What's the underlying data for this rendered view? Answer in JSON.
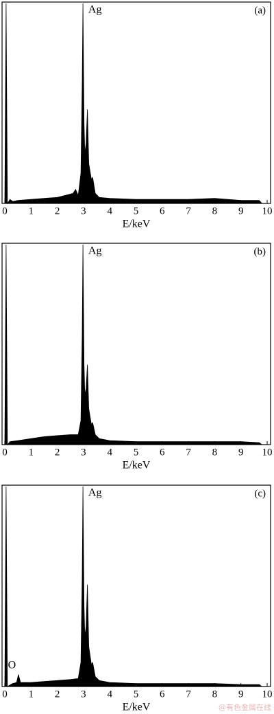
{
  "chart_data": [
    {
      "type": "area",
      "panel_label": "(a)",
      "annotations": [
        {
          "text": "Ag",
          "x": 3.0
        }
      ],
      "xlabel": "E/keV",
      "color": "#000000",
      "xlim": [
        0,
        10
      ],
      "ylim": [
        0,
        100
      ],
      "xticks": [
        0,
        1,
        2,
        3,
        4,
        5,
        6,
        7,
        8,
        9,
        10
      ],
      "x": [
        0,
        0.05,
        0.1,
        0.2,
        0.3,
        0.5,
        1,
        1.5,
        2,
        2.3,
        2.6,
        2.7,
        2.8,
        2.9,
        2.95,
        2.98,
        3.02,
        3.05,
        3.1,
        3.15,
        3.2,
        3.3,
        3.35,
        3.45,
        3.6,
        4,
        5,
        6,
        7,
        8,
        9,
        9.7,
        9.8
      ],
      "values": [
        0,
        100,
        0,
        2,
        1,
        1.5,
        2,
        2.5,
        3,
        4,
        5,
        7,
        4,
        15,
        60,
        100,
        40,
        25,
        30,
        47,
        20,
        12,
        13,
        5,
        3,
        2.5,
        2,
        2,
        2,
        2.5,
        1.5,
        1.5,
        0
      ]
    },
    {
      "type": "area",
      "panel_label": "(b)",
      "annotations": [
        {
          "text": "Ag",
          "x": 3.0
        }
      ],
      "xlabel": "E/keV",
      "color": "#000000",
      "xlim": [
        0,
        10
      ],
      "ylim": [
        0,
        100
      ],
      "xticks": [
        0,
        1,
        2,
        3,
        4,
        5,
        6,
        7,
        8,
        9,
        10
      ],
      "x": [
        0,
        0.05,
        0.1,
        0.2,
        0.5,
        1,
        1.5,
        2,
        2.5,
        2.8,
        2.9,
        2.95,
        2.98,
        3.02,
        3.05,
        3.1,
        3.15,
        3.2,
        3.3,
        3.35,
        3.45,
        3.6,
        4,
        5,
        6,
        7,
        8,
        9,
        9.7,
        9.8
      ],
      "values": [
        0,
        100,
        0,
        1.5,
        2,
        3,
        4,
        4.5,
        5,
        5,
        12,
        55,
        100,
        40,
        25,
        28,
        40,
        18,
        10,
        11,
        5,
        3,
        2,
        1.5,
        1.5,
        1.5,
        1.5,
        1.5,
        1,
        0
      ]
    },
    {
      "type": "area",
      "panel_label": "(c)",
      "annotations": [
        {
          "text": "Ag",
          "x": 3.0
        },
        {
          "text": "O",
          "x": 0.5
        }
      ],
      "xlabel": "E/keV",
      "color": "#000000",
      "xlim": [
        0,
        10
      ],
      "ylim": [
        0,
        100
      ],
      "xticks": [
        0,
        1,
        2,
        3,
        4,
        5,
        6,
        7,
        8,
        9,
        10
      ],
      "x": [
        0,
        0.05,
        0.1,
        0.3,
        0.45,
        0.52,
        0.6,
        1,
        1.5,
        2,
        2.5,
        2.8,
        2.9,
        2.95,
        2.98,
        3.02,
        3.05,
        3.1,
        3.15,
        3.2,
        3.3,
        3.35,
        3.45,
        3.6,
        4,
        5,
        6,
        7,
        8,
        9,
        9.7,
        9.8
      ],
      "values": [
        0,
        100,
        0,
        1.5,
        2,
        6,
        2,
        2,
        2.5,
        3,
        3.5,
        4,
        12,
        55,
        100,
        40,
        25,
        30,
        51,
        20,
        11,
        12,
        5,
        3,
        2,
        1.5,
        1.5,
        1.5,
        1.5,
        1,
        1,
        0
      ]
    }
  ],
  "watermark": "@有色金属在线"
}
